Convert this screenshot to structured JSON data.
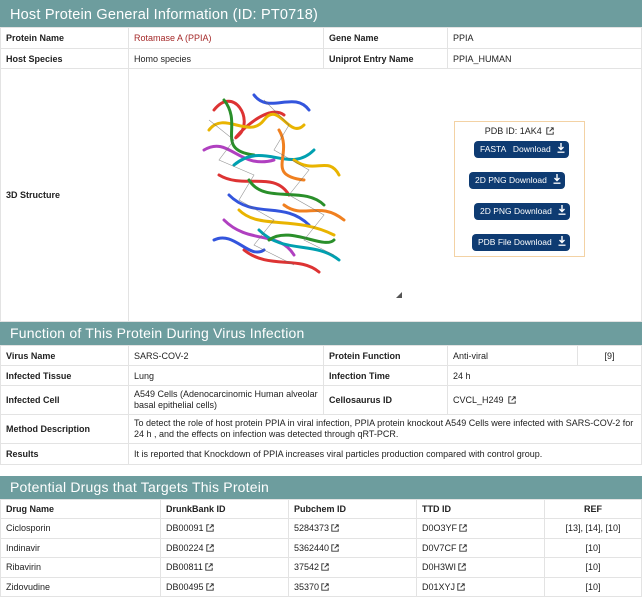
{
  "general": {
    "header": "Host Protein General Information (ID: PT0718)",
    "protein_name_label": "Protein Name",
    "protein_name_value": "Rotamase A (PPIA)",
    "gene_name_label": "Gene Name",
    "gene_name_value": "PPIA",
    "host_species_label": "Host Species",
    "host_species_value": "Homo species",
    "uniprot_label": "Uniprot Entry Name",
    "uniprot_value": "PPIA_HUMAN",
    "structure_label": "3D Structure",
    "pdb_id": "PDB ID: 1AK4",
    "buttons": [
      "FASTA   Download",
      "2D PNG Download",
      "2D PNG Download",
      "PDB File Download"
    ]
  },
  "function": {
    "header": "Function of This Protein During Virus Infection",
    "virus_name_label": "Virus Name",
    "virus_name_value": "SARS-COV-2",
    "protein_function_label": "Protein Function",
    "protein_function_value": "Anti-viral",
    "protein_function_ref": "[9]",
    "infected_tissue_label": "Infected Tissue",
    "infected_tissue_value": "Lung",
    "infection_time_label": "Infection Time",
    "infection_time_value": "24 h",
    "infected_cell_label": "Infected Cell",
    "infected_cell_value": "A549 Cells (Adenocarcinomic Human alveolar basal epithelial cells)",
    "cellosaurus_label": "Cellosaurus ID",
    "cellosaurus_value": "CVCL_H249",
    "method_label": "Method Description",
    "method_value": "To detect the role of host protein PPIA in viral infection, PPIA protein knockout A549 Cells were infected with SARS-COV-2 for 24 h , and the effects on infection was detected through qRT-PCR.",
    "results_label": "Results",
    "results_value": "It is reported that Knockdown of PPIA increases viral particles production compared with control group."
  },
  "drugs": {
    "header": "Potential Drugs that Targets This Protein",
    "columns": [
      "Drug Name",
      "DrunkBank ID",
      "Pubchem ID",
      "TTD ID",
      "REF"
    ],
    "rows": [
      {
        "name": "Ciclosporin",
        "drugbank": "DB00091",
        "pubchem": "5284373",
        "ttd": "D0O3YF",
        "ref": "[13], [14], [10]"
      },
      {
        "name": "Indinavir",
        "drugbank": "DB00224",
        "pubchem": "5362440",
        "ttd": "D0V7CF",
        "ref": "[10]"
      },
      {
        "name": "Ribavirin",
        "drugbank": "DB00811",
        "pubchem": "37542",
        "ttd": "D0H3WI",
        "ref": "[10]"
      },
      {
        "name": "Zidovudine",
        "drugbank": "DB00495",
        "pubchem": "35370",
        "ttd": "D01XYJ",
        "ref": "[10]"
      }
    ]
  },
  "colors": {
    "header_bg": "#6d9d9e",
    "button_bg": "#0e3b72",
    "protein_name": "#a52a2a"
  }
}
